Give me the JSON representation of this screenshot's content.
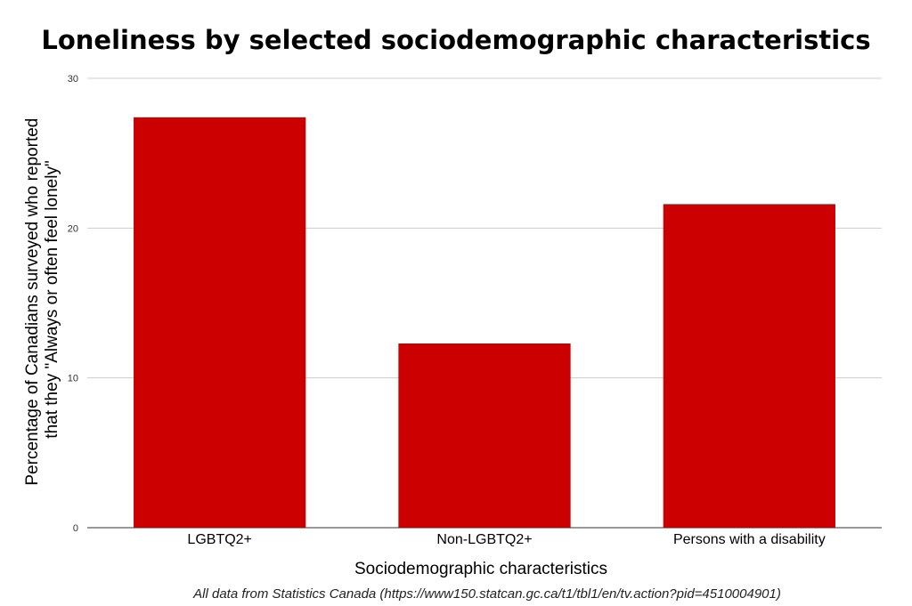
{
  "chart_data": {
    "type": "bar",
    "title": "Loneliness by selected sociodemographic characteristics",
    "categories": [
      "LGBTQ2+",
      "Non-LGBTQ2+",
      "Persons with a disability"
    ],
    "values": [
      27.4,
      12.3,
      21.6
    ],
    "xlabel": "Sociodemographic characteristics",
    "ylabel_lines": [
      "Percentage of Canadians surveyed who reported",
      "that they \"Always or often feel lonely\""
    ],
    "ylim": [
      0,
      30
    ],
    "yticks": [
      0,
      10,
      20,
      30
    ],
    "grid": true,
    "bar_color": "#cc0000"
  },
  "source_note": "All data from Statistics Canada (https://www150.statcan.gc.ca/t1/tbl1/en/tv.action?pid=4510004901)"
}
